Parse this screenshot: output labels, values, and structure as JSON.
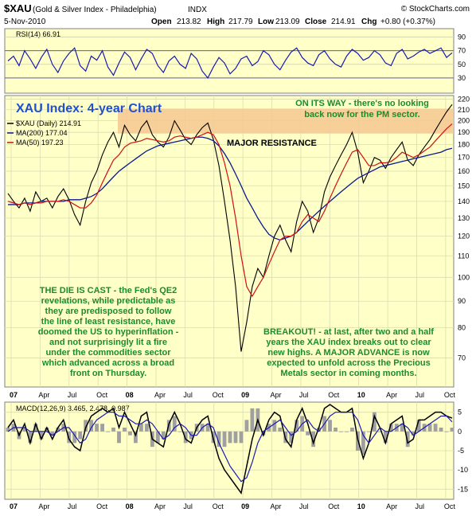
{
  "header": {
    "symbol": "$XAU",
    "name": "(Gold & Silver Index - Philadelphia)",
    "exchange": "INDX",
    "watermark": "© StockCharts.com",
    "date": "5-Nov-2010",
    "open_label": "Open",
    "open": "213.82",
    "high_label": "High",
    "high": "217.79",
    "low_label": "Low",
    "low": "213.09",
    "close_label": "Close",
    "close": "214.91",
    "chg_label": "Chg",
    "chg": "+0.80 (+0.37%)"
  },
  "colors": {
    "panel_bg": "#FFFFC8",
    "price_line": "#000000",
    "ma200": "#0A1A8C",
    "ma50": "#D01010",
    "rsi": "#1A1AB0",
    "macd": "#000000",
    "signal": "#1A1AB0",
    "histogram": "#A0A0A0",
    "annotation": "#1C8C2A",
    "title": "#2050D0",
    "resistance_band": "#F6C890"
  },
  "annotations": {
    "chart_title": "XAU Index: 4-year Chart",
    "resistance": "MAJOR RESISTANCE",
    "on_its_way": [
      "ON ITS WAY - there's no looking",
      "back now for the PM sector."
    ],
    "die_cast": [
      "THE DIE IS CAST - the Fed's QE2",
      "revelations, while predictable as",
      "they are predisposed to follow",
      "the line of least resistance, have",
      "doomed the US to hyperinflation -",
      "and not surprisingly lit a fire",
      "under the commodities sector",
      "which advanced across a broad",
      "front on Thursday."
    ],
    "breakout": [
      "BREAKOUT! - at last, after two and a half",
      "years the XAU index breaks out to clear",
      "new highs. A MAJOR ADVANCE is now",
      "expected to unfold across the Precious",
      "Metals sector in coming months."
    ]
  },
  "chart_data": [
    {
      "panel": "rsi",
      "type": "line",
      "label": "RSI(14) 66.91",
      "y_ticks": [
        30,
        50,
        70,
        90
      ],
      "ylim": [
        10,
        100
      ],
      "reference_lines": [
        30,
        70
      ],
      "series": [
        {
          "name": "RSI(14)",
          "values": [
            55,
            62,
            48,
            70,
            58,
            44,
            60,
            72,
            50,
            38,
            55,
            66,
            74,
            48,
            40,
            62,
            56,
            70,
            46,
            34,
            52,
            68,
            60,
            42,
            58,
            72,
            66,
            48,
            38,
            55,
            62,
            50,
            44,
            66,
            58,
            40,
            30,
            46,
            60,
            52,
            36,
            44,
            58,
            62,
            48,
            54,
            70,
            64,
            50,
            42,
            56,
            68,
            74,
            60,
            52,
            48,
            64,
            70,
            58,
            50,
            46,
            62,
            72,
            66,
            56,
            60,
            70,
            64,
            52,
            48,
            66,
            72,
            58,
            62,
            68,
            72,
            66,
            70,
            74,
            60,
            66.91
          ]
        }
      ]
    },
    {
      "panel": "price",
      "type": "line",
      "title": "$XAU (Daily) 214.91",
      "y_ticks": [
        70,
        80,
        90,
        100,
        110,
        120,
        130,
        140,
        150,
        160,
        170,
        180,
        190,
        200,
        210,
        220
      ],
      "log_scale": true,
      "ylim": [
        62,
        222
      ],
      "x_labels": [
        "07",
        "Apr",
        "Jul",
        "Oct",
        "08",
        "Apr",
        "Jul",
        "Oct",
        "09",
        "Apr",
        "Jul",
        "Oct",
        "10",
        "Apr",
        "Jul",
        "Oct"
      ],
      "resistance_band": [
        189,
        211
      ],
      "series": [
        {
          "name": "$XAU (Daily)",
          "values": [
            145,
            140,
            136,
            142,
            134,
            146,
            140,
            142,
            136,
            143,
            148,
            141,
            132,
            126,
            140,
            152,
            160,
            172,
            182,
            190,
            178,
            196,
            188,
            183,
            194,
            200,
            188,
            182,
            178,
            186,
            200,
            192,
            184,
            180,
            188,
            194,
            198,
            184,
            164,
            140,
            118,
            96,
            72,
            82,
            96,
            104,
            100,
            110,
            120,
            126,
            118,
            112,
            128,
            140,
            134,
            122,
            130,
            146,
            156,
            164,
            172,
            180,
            190,
            174,
            152,
            160,
            170,
            168,
            162,
            170,
            176,
            182,
            168,
            164,
            172,
            178,
            184,
            192,
            200,
            208,
            214.91
          ]
        },
        {
          "name": "MA(200) 177.04",
          "values": [
            138,
            138,
            138,
            139,
            139,
            139,
            140,
            140,
            140,
            140,
            140,
            141,
            141,
            141,
            142,
            143,
            145,
            148,
            152,
            156,
            160,
            163,
            166,
            169,
            172,
            175,
            177,
            179,
            180,
            181,
            182,
            183,
            184,
            185,
            186,
            186,
            185,
            183,
            179,
            173,
            166,
            158,
            150,
            142,
            136,
            130,
            125,
            121,
            119,
            118,
            119,
            120,
            122,
            125,
            128,
            131,
            134,
            137,
            140,
            143,
            146,
            149,
            152,
            155,
            157,
            159,
            161,
            163,
            164,
            165,
            166,
            167,
            168,
            169,
            170,
            171,
            172,
            173,
            174,
            176,
            177.04
          ]
        },
        {
          "name": "MA(50) 197.23",
          "values": [
            140,
            139,
            138,
            139,
            138,
            139,
            139,
            140,
            140,
            140,
            141,
            140,
            138,
            136,
            136,
            139,
            144,
            152,
            160,
            168,
            172,
            178,
            181,
            182,
            183,
            185,
            184,
            183,
            182,
            183,
            186,
            187,
            186,
            185,
            186,
            188,
            190,
            188,
            180,
            166,
            150,
            130,
            110,
            96,
            92,
            96,
            100,
            106,
            112,
            118,
            120,
            120,
            122,
            128,
            132,
            130,
            128,
            134,
            142,
            150,
            158,
            166,
            174,
            176,
            170,
            164,
            164,
            166,
            166,
            167,
            170,
            174,
            172,
            170,
            172,
            175,
            178,
            183,
            188,
            193,
            197.23
          ]
        }
      ]
    },
    {
      "panel": "macd",
      "type": "line",
      "label": "MACD(12,26,9) 3.465, 2.478, 0.987",
      "y_ticks": [
        5,
        0,
        -5,
        -10,
        -15
      ],
      "ylim": [
        -17,
        7
      ],
      "x_labels": [
        "07",
        "Apr",
        "Jul",
        "Oct",
        "08",
        "Apr",
        "Jul",
        "Oct",
        "09",
        "Apr",
        "Jul",
        "Oct",
        "10",
        "Apr",
        "Jul",
        "Oct"
      ],
      "series": [
        {
          "name": "MACD",
          "values": [
            1,
            3,
            -1,
            2,
            -3,
            2,
            -2,
            1,
            -2,
            1,
            3,
            -2,
            -4,
            -5,
            1,
            4,
            5,
            6,
            5,
            6,
            1,
            5,
            2,
            -1,
            4,
            5,
            -2,
            -3,
            -4,
            2,
            5,
            2,
            -2,
            -3,
            1,
            3,
            4,
            -2,
            -7,
            -10,
            -12,
            -14,
            -16,
            -9,
            -2,
            3,
            -1,
            3,
            5,
            4,
            -2,
            -4,
            3,
            6,
            2,
            -3,
            1,
            6,
            7,
            6,
            5,
            5,
            6,
            -2,
            -7,
            -3,
            4,
            1,
            -3,
            2,
            3,
            4,
            -3,
            -2,
            3,
            3,
            4,
            5,
            5,
            4,
            3.465
          ]
        },
        {
          "name": "Signal",
          "values": [
            0,
            1,
            1,
            1,
            0,
            0,
            0,
            0,
            -1,
            0,
            1,
            1,
            -1,
            -3,
            -2,
            1,
            3,
            4,
            5,
            5,
            4,
            4,
            3,
            2,
            2,
            3,
            2,
            0,
            -2,
            -1,
            1,
            2,
            1,
            -1,
            -1,
            1,
            2,
            1,
            -3,
            -6,
            -9,
            -11,
            -13,
            -12,
            -8,
            -3,
            0,
            1,
            2,
            3,
            1,
            -1,
            0,
            2,
            3,
            1,
            0,
            2,
            4,
            5,
            5,
            5,
            5,
            3,
            -1,
            -3,
            -1,
            1,
            0,
            0,
            1,
            2,
            1,
            -1,
            0,
            1,
            2,
            3,
            4,
            4,
            2.478
          ]
        },
        {
          "name": "Histogram",
          "values": [
            1,
            2,
            -2,
            1,
            -3,
            2,
            -2,
            1,
            -1,
            1,
            2,
            -3,
            -3,
            -2,
            3,
            3,
            2,
            2,
            0,
            1,
            -3,
            1,
            -1,
            -3,
            2,
            2,
            -4,
            -3,
            -2,
            3,
            4,
            0,
            -3,
            -2,
            2,
            2,
            2,
            -3,
            -4,
            -4,
            -3,
            -3,
            -3,
            3,
            6,
            6,
            -1,
            2,
            3,
            1,
            -3,
            -3,
            3,
            4,
            -1,
            -4,
            1,
            4,
            3,
            1,
            0,
            0,
            1,
            -5,
            -6,
            0,
            5,
            0,
            -3,
            2,
            2,
            2,
            -4,
            -1,
            3,
            2,
            2,
            2,
            1,
            0,
            0.987
          ]
        }
      ]
    }
  ]
}
